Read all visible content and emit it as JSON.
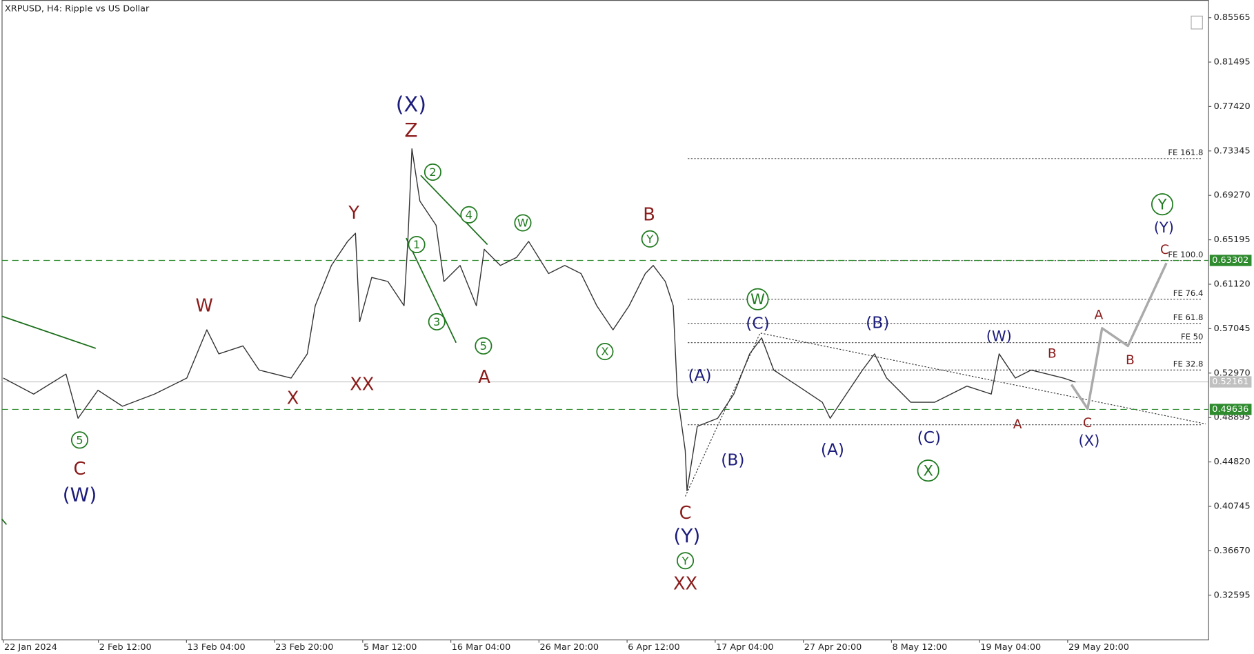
{
  "chart_data": {
    "type": "line",
    "title": "XRPUSD, H4:  Ripple vs US Dollar",
    "xlim": [
      -5,
      3500
    ],
    "xticks": [
      {
        "value": 0,
        "label": "22 Jan 2024"
      },
      {
        "value": 276,
        "label": "2 Feb 12:00"
      },
      {
        "value": 532,
        "label": "13 Feb 04:00"
      },
      {
        "value": 788,
        "label": "23 Feb 20:00"
      },
      {
        "value": 1044,
        "label": "5 Mar 12:00"
      },
      {
        "value": 1300,
        "label": "16 Mar 04:00"
      },
      {
        "value": 1556,
        "label": "26 Mar 20:00"
      },
      {
        "value": 1812,
        "label": "6 Apr 12:00"
      },
      {
        "value": 2068,
        "label": "17 Apr 04:00"
      },
      {
        "value": 2324,
        "label": "27 Apr 20:00"
      },
      {
        "value": 2580,
        "label": "8 May 12:00"
      },
      {
        "value": 2836,
        "label": "19 May 04:00"
      },
      {
        "value": 3092,
        "label": "29 May 20:00"
      }
    ],
    "ylim": [
      0.2853,
      0.8719
    ],
    "yticks": [
      0.85565,
      0.81495,
      {
        "value": 0.7742,
        "label": "0.77420"
      },
      0.73345,
      {
        "value": 0.6927,
        "label": "0.69270"
      },
      0.65195,
      {
        "value": 0.6112,
        "label": "0.61120"
      },
      0.57045,
      {
        "value": 0.5297,
        "label": "0.52970"
      },
      0.48895,
      {
        "value": 0.4482,
        "label": "0.44820"
      },
      0.40745,
      {
        "value": 0.3667,
        "label": "0.36670"
      },
      0.32595
    ],
    "color": "#333333",
    "x": [
      0,
      88,
      182,
      217,
      275,
      346,
      439,
      533,
      591,
      626,
      696,
      743,
      836,
      883,
      906,
      953,
      1000,
      1023,
      1035,
      1070,
      1117,
      1164,
      1175,
      1187,
      1210,
      1257,
      1280,
      1327,
      1374,
      1397,
      1444,
      1491,
      1526,
      1584,
      1631,
      1678,
      1724,
      1771,
      1818,
      1865,
      1888,
      1923,
      1946,
      1958,
      1981,
      1986,
      2016,
      2075,
      2122,
      2168,
      2203,
      2238,
      2309,
      2379,
      2402,
      2449,
      2496,
      2531,
      2566,
      2636,
      2706,
      2753,
      2799,
      2870,
      2893,
      2940,
      2986,
      3033,
      3080,
      3115
    ],
    "values": [
      0.5251,
      0.5104,
      0.5288,
      0.4882,
      0.514,
      0.4993,
      0.5104,
      0.5251,
      0.5694,
      0.5473,
      0.5546,
      0.5325,
      0.5251,
      0.5473,
      0.5915,
      0.6284,
      0.6505,
      0.6579,
      0.5768,
      0.6174,
      0.6137,
      0.5915,
      0.6505,
      0.7354,
      0.6874,
      0.6653,
      0.6137,
      0.6284,
      0.5915,
      0.6432,
      0.6284,
      0.6358,
      0.6505,
      0.621,
      0.6284,
      0.621,
      0.5915,
      0.5694,
      0.5915,
      0.621,
      0.6284,
      0.6137,
      0.5915,
      0.5104,
      0.4587,
      0.4218,
      0.4808,
      0.4882,
      0.5104,
      0.5473,
      0.562,
      0.5325,
      0.5177,
      0.503,
      0.4882,
      0.5104,
      0.5325,
      0.5473,
      0.5251,
      0.503,
      0.503,
      0.5104,
      0.5177,
      0.5104,
      0.5473,
      0.5251,
      0.5325,
      0.5288,
      0.5251,
      0.5214
    ],
    "forecast": {
      "color": "#aaaaaa",
      "x": [
        3103,
        3150,
        3192,
        3267,
        3379
      ],
      "values": [
        0.5192,
        0.497,
        0.5708,
        0.5546,
        0.6306
      ]
    },
    "price_tags": [
      {
        "value": 0.63302,
        "color": "#2e8b2e"
      },
      {
        "value": 0.52161,
        "color": "#c0c0c0"
      },
      {
        "value": 0.49636,
        "color": "#2e8b2e"
      }
    ],
    "levels": [
      {
        "label": "FE 161.8",
        "value": 0.7265
      },
      {
        "label": "FE 100.0",
        "value": 0.6329
      },
      {
        "label": "FE 76.4",
        "value": 0.5974
      },
      {
        "label": "FE 61.8",
        "value": 0.5753
      },
      {
        "label": "FE 50",
        "value": 0.5576
      },
      {
        "label": "FE 32.8",
        "value": 0.5325
      }
    ],
    "base_level": 0.4823,
    "annotations": [
      "(X)",
      "Z",
      "Y",
      "W",
      "XX",
      "X",
      "5",
      "C",
      "(W)",
      "2",
      "4",
      "1",
      "3",
      "5",
      "W",
      "X",
      "Y",
      "B",
      "A",
      "(A)",
      "(B)",
      "C",
      "(Y)",
      "Y",
      "XX",
      "W",
      "(C)",
      "(A)",
      "(B)",
      "(C)",
      "X",
      "(W)",
      "B",
      "A",
      "A",
      "B",
      "C",
      "(X)",
      "Y",
      "(Y)",
      "C"
    ]
  }
}
